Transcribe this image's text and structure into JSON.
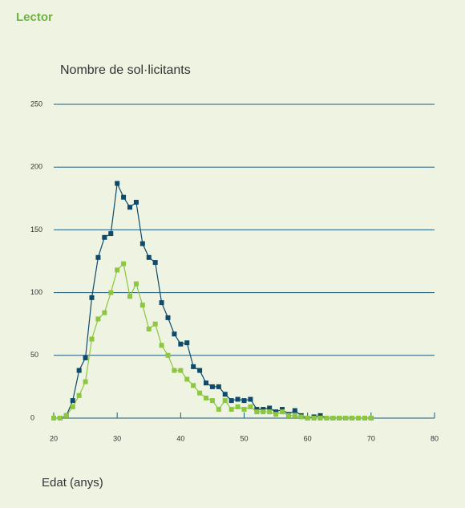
{
  "chart_data": {
    "type": "line",
    "panel_title": "Lector",
    "title": "Nombre de sol·licitants",
    "x_label": "Edat (anys)",
    "x": [
      20,
      21,
      22,
      23,
      24,
      25,
      26,
      27,
      28,
      29,
      30,
      31,
      32,
      33,
      34,
      35,
      36,
      37,
      38,
      39,
      40,
      41,
      42,
      43,
      44,
      45,
      46,
      47,
      48,
      49,
      50,
      51,
      52,
      53,
      54,
      55,
      56,
      57,
      58,
      59,
      60,
      61,
      62,
      63,
      64,
      65,
      66,
      67,
      68,
      69,
      70
    ],
    "series": [
      {
        "color": "#0d4a6b",
        "values": [
          0,
          0,
          2,
          14,
          38,
          48,
          96,
          128,
          144,
          147,
          187,
          176,
          168,
          172,
          139,
          128,
          124,
          92,
          80,
          67,
          59,
          60,
          41,
          38,
          28,
          25,
          25,
          19,
          14,
          15,
          14,
          15,
          7,
          7,
          8,
          5,
          7,
          3,
          6,
          2,
          0,
          1,
          2,
          0,
          0,
          0,
          0,
          0,
          0,
          0,
          0
        ]
      },
      {
        "color": "#8dc63f",
        "values": [
          0,
          0,
          2,
          9,
          18,
          29,
          63,
          79,
          84,
          100,
          118,
          123,
          97,
          107,
          90,
          71,
          75,
          58,
          50,
          38,
          38,
          31,
          26,
          20,
          16,
          14,
          7,
          14,
          7,
          9,
          7,
          9,
          5,
          5,
          5,
          3,
          5,
          2,
          2,
          1,
          0,
          0,
          0,
          0,
          0,
          0,
          0,
          0,
          0,
          0,
          0
        ]
      }
    ],
    "xlim": [
      20,
      80
    ],
    "xticks": [
      20,
      30,
      40,
      50,
      60,
      70,
      80
    ],
    "ylim": [
      0,
      250
    ],
    "yticks": [
      0,
      50,
      100,
      150,
      200,
      250
    ],
    "grid": true,
    "grid_color": "#1d5a7a"
  }
}
